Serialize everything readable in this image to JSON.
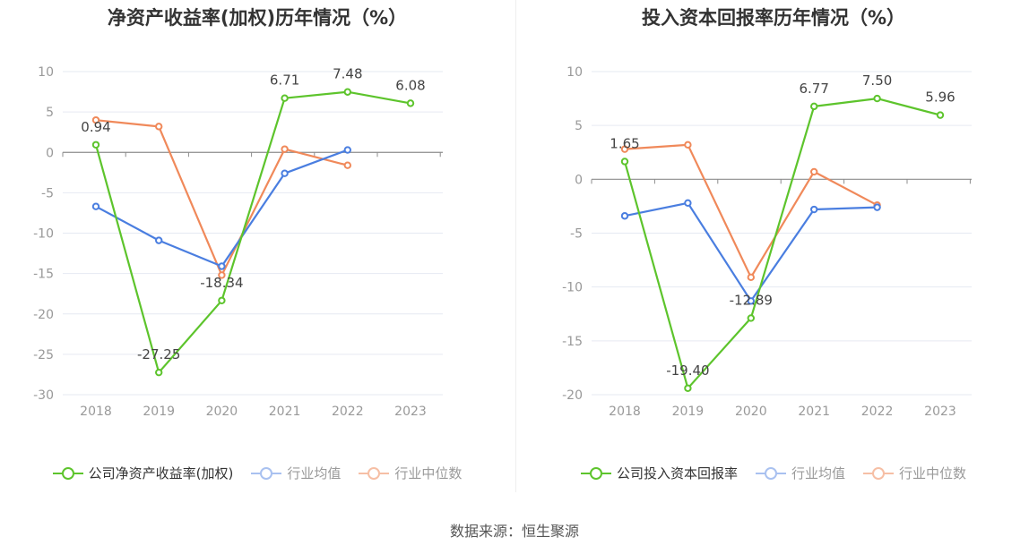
{
  "chart_data": [
    {
      "type": "line",
      "title": "净资产收益率(加权)历年情况（%）",
      "categories": [
        "2018",
        "2019",
        "2020",
        "2021",
        "2022",
        "2023"
      ],
      "ylim": [
        -30,
        10
      ],
      "yticks": [
        10,
        5,
        0,
        -5,
        -10,
        -15,
        -20,
        -25,
        -30
      ],
      "series": [
        {
          "name": "公司净资产收益率(加权)",
          "color": "#5dc42c",
          "values": [
            0.94,
            -27.25,
            -18.34,
            6.71,
            7.48,
            6.08
          ],
          "labels": [
            "0.94",
            "-27.25",
            "-18.34",
            "6.71",
            "7.48",
            "6.08"
          ]
        },
        {
          "name": "行业均值",
          "color": "#4a7ee0",
          "values": [
            -6.7,
            -10.9,
            -14.1,
            -2.6,
            0.3,
            null
          ]
        },
        {
          "name": "行业中位数",
          "color": "#f0895a",
          "values": [
            4.0,
            3.2,
            -15.2,
            0.4,
            -1.6,
            null
          ]
        }
      ],
      "grid": true,
      "legend": "bottom"
    },
    {
      "type": "line",
      "title": "投入资本回报率历年情况（%）",
      "categories": [
        "2018",
        "2019",
        "2020",
        "2021",
        "2022",
        "2023"
      ],
      "ylim": [
        -20,
        10
      ],
      "yticks": [
        10,
        5,
        0,
        -5,
        -10,
        -15,
        -20
      ],
      "series": [
        {
          "name": "公司投入资本回报率",
          "color": "#5dc42c",
          "values": [
            1.65,
            -19.4,
            -12.89,
            6.77,
            7.5,
            5.96
          ],
          "labels": [
            "1.65",
            "-19.40",
            "-12.89",
            "6.77",
            "7.50",
            "5.96"
          ]
        },
        {
          "name": "行业均值",
          "color": "#4a7ee0",
          "values": [
            -3.4,
            -2.2,
            -11.3,
            -2.8,
            -2.6,
            null
          ]
        },
        {
          "name": "行业中位数",
          "color": "#f0895a",
          "values": [
            2.8,
            3.2,
            -9.1,
            0.7,
            -2.4,
            null
          ]
        }
      ],
      "grid": true,
      "legend": "bottom"
    }
  ],
  "source": "数据来源：恒生聚源"
}
